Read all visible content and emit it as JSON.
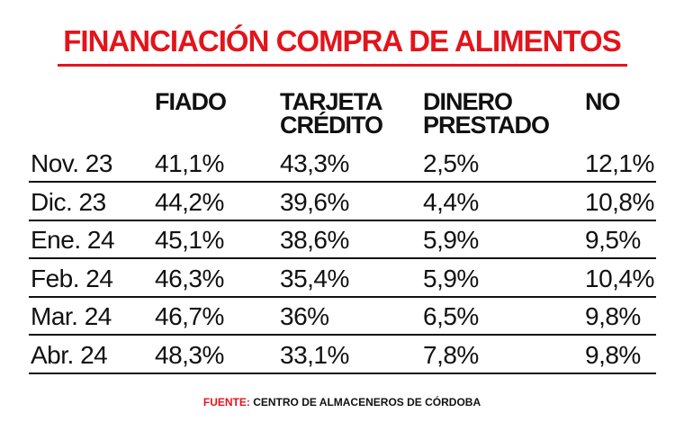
{
  "title": "FINANCIACIÓN COMPRA DE ALIMENTOS",
  "source_label": "FUENTE:",
  "source_text": "CENTRO DE ALMACENEROS DE CÓRDOBA",
  "colors": {
    "accent": "#e3141b",
    "text": "#111111",
    "background": "#ffffff"
  },
  "chart_data": {
    "type": "table",
    "title": "FINANCIACIÓN COMPRA DE ALIMENTOS",
    "columns": [
      {
        "key": "fiado",
        "lines": [
          "FIADO"
        ]
      },
      {
        "key": "tarjeta",
        "lines": [
          "TARJETA",
          "CRÉDITO"
        ]
      },
      {
        "key": "dinero",
        "lines": [
          "DINERO",
          "PRESTADO"
        ]
      },
      {
        "key": "no",
        "lines": [
          "NO"
        ]
      }
    ],
    "rows": [
      {
        "label": "Nov. 23",
        "values": [
          "41,1%",
          "43,3%",
          "2,5%",
          "12,1%"
        ]
      },
      {
        "label": "Dic. 23",
        "values": [
          "44,2%",
          "39,6%",
          "4,4%",
          "10,8%"
        ]
      },
      {
        "label": "Ene. 24",
        "values": [
          "45,1%",
          "38,6%",
          "5,9%",
          "9,5%"
        ]
      },
      {
        "label": "Feb. 24",
        "values": [
          "46,3%",
          "35,4%",
          "5,9%",
          "10,4%"
        ]
      },
      {
        "label": "Mar. 24",
        "values": [
          "46,7%",
          "36%",
          "6,5%",
          "9,8%"
        ]
      },
      {
        "label": "Abr. 24",
        "values": [
          "48,3%",
          "33,1%",
          "7,8%",
          "9,8%"
        ]
      }
    ]
  }
}
